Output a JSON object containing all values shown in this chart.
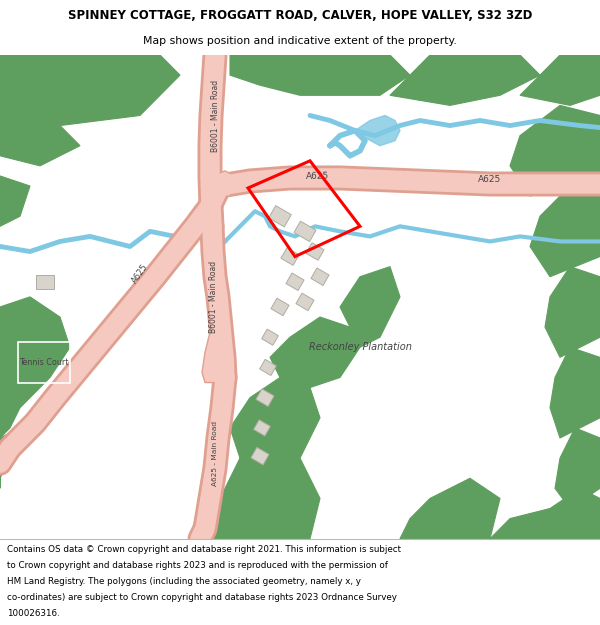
{
  "title": "SPINNEY COTTAGE, FROGGATT ROAD, CALVER, HOPE VALLEY, S32 3ZD",
  "subtitle": "Map shows position and indicative extent of the property.",
  "footer_line1": "Contains OS data © Crown copyright and database right 2021. This information is subject",
  "footer_line2": "to Crown copyright and database rights 2023 and is reproduced with the permission of",
  "footer_line3": "HM Land Registry. The polygons (including the associated geometry, namely x, y",
  "footer_line4": "co-ordinates) are subject to Crown copyright and database rights 2023 Ordnance Survey",
  "footer_line5": "100026316.",
  "map_bg": "#f5f0eb",
  "green_color": "#5e9e5e",
  "road_fill": "#f5c8c0",
  "road_edge": "#e0a090",
  "building_fill": "#d8d4cc",
  "building_edge": "#b0aca4",
  "plot_color": "#ff0000",
  "river_color": "#7ec8e3",
  "white": "#ffffff",
  "text_color": "#444444",
  "figsize": [
    6.0,
    6.25
  ],
  "dpi": 100
}
